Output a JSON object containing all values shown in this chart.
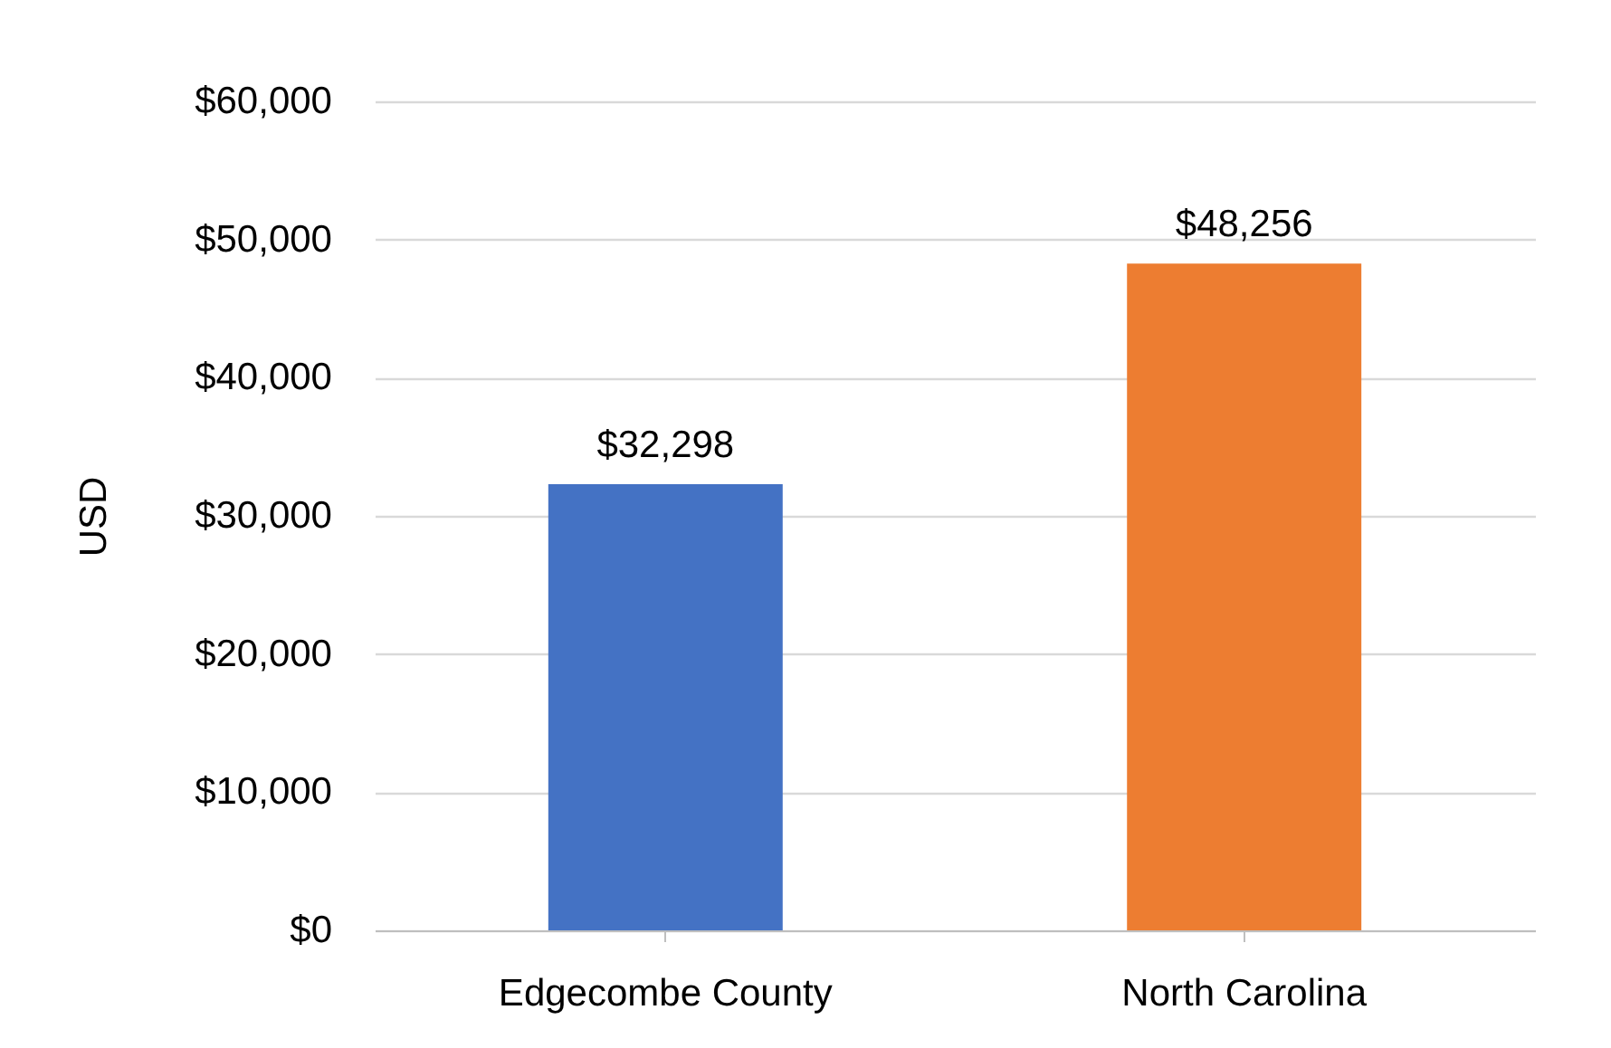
{
  "chart_data": {
    "type": "bar",
    "ylabel": "USD",
    "categories": [
      "Edgecombe County",
      "North Carolina"
    ],
    "values": [
      32298,
      48256
    ],
    "colors": [
      "#4472c4",
      "#ed7d31"
    ],
    "value_labels": [
      "$32,298",
      "$48,256"
    ],
    "ylim": [
      0,
      60000
    ],
    "yticks": [
      {
        "value": 0,
        "label": "$0"
      },
      {
        "value": 10000,
        "label": "$10,000"
      },
      {
        "value": 20000,
        "label": "$20,000"
      },
      {
        "value": 30000,
        "label": "$30,000"
      },
      {
        "value": 40000,
        "label": "$40,000"
      },
      {
        "value": 50000,
        "label": "$50,000"
      },
      {
        "value": 60000,
        "label": "$60,000"
      }
    ],
    "grid": "y"
  }
}
